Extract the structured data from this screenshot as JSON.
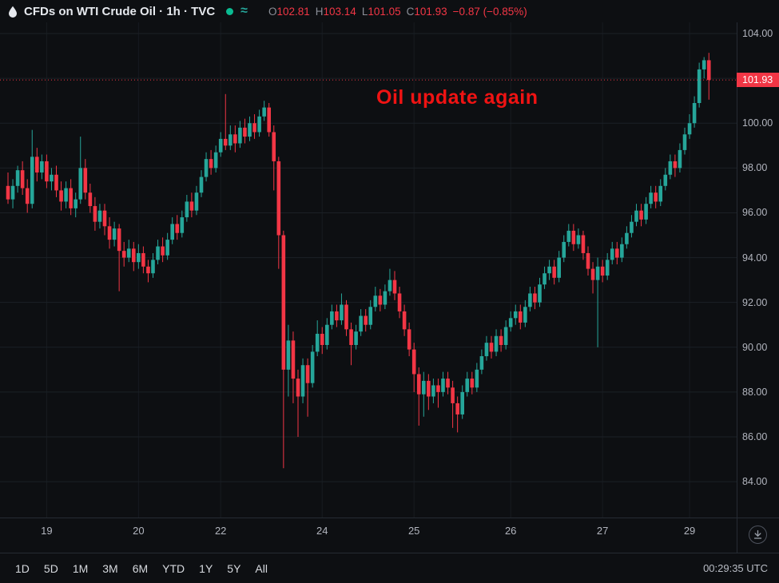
{
  "header": {
    "title": "CFDs on WTI Crude Oil · 1h · TVC",
    "wave_symbol": "≈",
    "status_dot_color": "#0abb92",
    "ohlc": {
      "o_label": "O",
      "o_value": "102.81",
      "h_label": "H",
      "h_value": "103.14",
      "l_label": "L",
      "l_value": "101.05",
      "c_label": "C",
      "c_value": "101.93",
      "change": "−0.87 (−0.85%)"
    }
  },
  "annotation": {
    "text": "Oil update again",
    "color": "#ef1313"
  },
  "price_axis": {
    "current_price_label": "101.93",
    "current_price_bg": "#f23645"
  },
  "toolbar": {
    "ranges": [
      "1D",
      "5D",
      "1M",
      "3M",
      "6M",
      "YTD",
      "1Y",
      "5Y",
      "All"
    ],
    "clock": "00:29:35 UTC"
  },
  "colors": {
    "background": "#0d0f12",
    "grid_horizontal": "#1b2026",
    "grid_vertical": "#171b20",
    "axis_text": "#b2b5be",
    "title_text": "#e6e9ee",
    "ohlc_label": "#8b8f98",
    "value_red": "#f23645",
    "up_green": "#26a69a"
  },
  "chart_data": {
    "type": "candlestick",
    "title": "CFDs on WTI Crude Oil · 1h · TVC",
    "up_color": "#26a69a",
    "down_color": "#f23645",
    "ylim": [
      82.4,
      104.5
    ],
    "last_price": 101.93,
    "price_ticks": [
      {
        "price": 104,
        "label": "104.00"
      },
      {
        "price": 102,
        "label": "102.00",
        "hidden": true
      },
      {
        "price": 100,
        "label": "100.00"
      },
      {
        "price": 98,
        "label": "98.00"
      },
      {
        "price": 96,
        "label": "96.00"
      },
      {
        "price": 94,
        "label": "94.00"
      },
      {
        "price": 92,
        "label": "92.00"
      },
      {
        "price": 90,
        "label": "90.00"
      },
      {
        "price": 88,
        "label": "88.00"
      },
      {
        "price": 86,
        "label": "86.00"
      },
      {
        "price": 84,
        "label": "84.00"
      }
    ],
    "time_labels": [
      {
        "label": "19",
        "i": 8
      },
      {
        "label": "20",
        "i": 27
      },
      {
        "label": "22",
        "i": 44
      },
      {
        "label": "24",
        "i": 65
      },
      {
        "label": "25",
        "i": 84
      },
      {
        "label": "26",
        "i": 104
      },
      {
        "label": "27",
        "i": 123
      },
      {
        "label": "29",
        "i": 141
      }
    ],
    "candles": [
      [
        97.2,
        97.8,
        96.4,
        96.6
      ],
      [
        96.6,
        97.5,
        96.2,
        97.2
      ],
      [
        97.2,
        98.1,
        96.9,
        97.9
      ],
      [
        97.9,
        98.3,
        96.8,
        97.1
      ],
      [
        97.1,
        97.5,
        96.0,
        96.4
      ],
      [
        96.4,
        99.7,
        96.2,
        98.5
      ],
      [
        98.5,
        98.9,
        97.4,
        97.8
      ],
      [
        97.8,
        98.6,
        97.5,
        98.3
      ],
      [
        98.3,
        98.6,
        97.1,
        97.4
      ],
      [
        97.4,
        98.0,
        97.0,
        97.7
      ],
      [
        97.7,
        98.1,
        96.7,
        97.0
      ],
      [
        97.0,
        97.4,
        96.1,
        96.5
      ],
      [
        96.5,
        97.4,
        96.2,
        97.1
      ],
      [
        97.1,
        97.5,
        95.9,
        96.2
      ],
      [
        96.2,
        96.9,
        95.8,
        96.6
      ],
      [
        96.6,
        99.4,
        96.4,
        98.0
      ],
      [
        98.0,
        98.4,
        96.6,
        96.9
      ],
      [
        96.9,
        97.3,
        96.0,
        96.3
      ],
      [
        96.3,
        96.7,
        95.2,
        95.6
      ],
      [
        95.6,
        96.4,
        95.3,
        96.1
      ],
      [
        96.1,
        96.4,
        95.0,
        95.4
      ],
      [
        95.4,
        95.8,
        94.4,
        94.8
      ],
      [
        94.8,
        95.6,
        94.5,
        95.3
      ],
      [
        95.3,
        95.5,
        92.5,
        94.3
      ],
      [
        94.3,
        94.7,
        93.6,
        94.0
      ],
      [
        94.0,
        94.8,
        93.8,
        94.4
      ],
      [
        94.4,
        94.7,
        93.4,
        93.8
      ],
      [
        93.8,
        94.6,
        93.5,
        94.2
      ],
      [
        94.2,
        94.5,
        93.3,
        93.6
      ],
      [
        93.6,
        93.9,
        92.9,
        93.3
      ],
      [
        93.3,
        94.2,
        93.1,
        93.9
      ],
      [
        93.9,
        94.8,
        93.7,
        94.5
      ],
      [
        94.5,
        94.9,
        93.8,
        94.1
      ],
      [
        94.1,
        95.1,
        93.9,
        94.8
      ],
      [
        94.8,
        95.8,
        94.6,
        95.5
      ],
      [
        95.5,
        95.9,
        94.8,
        95.1
      ],
      [
        95.1,
        96.1,
        94.9,
        95.8
      ],
      [
        95.8,
        96.8,
        95.6,
        96.5
      ],
      [
        96.5,
        96.9,
        95.8,
        96.1
      ],
      [
        96.1,
        97.2,
        95.9,
        96.9
      ],
      [
        96.9,
        97.9,
        96.7,
        97.6
      ],
      [
        97.6,
        98.7,
        97.4,
        98.4
      ],
      [
        98.4,
        98.8,
        97.7,
        98.0
      ],
      [
        98.0,
        99.0,
        97.8,
        98.7
      ],
      [
        98.7,
        99.6,
        98.5,
        99.3
      ],
      [
        99.3,
        101.3,
        98.8,
        99.0
      ],
      [
        99.0,
        99.9,
        98.8,
        99.5
      ],
      [
        99.5,
        99.9,
        98.7,
        99.1
      ],
      [
        99.1,
        100.1,
        98.9,
        99.8
      ],
      [
        99.8,
        100.2,
        99.1,
        99.4
      ],
      [
        99.4,
        100.3,
        99.2,
        100.0
      ],
      [
        100.0,
        100.4,
        99.3,
        99.6
      ],
      [
        99.6,
        100.6,
        99.4,
        100.3
      ],
      [
        100.3,
        101.0,
        100.1,
        100.7
      ],
      [
        100.7,
        100.9,
        99.4,
        99.6
      ],
      [
        99.6,
        99.9,
        97.0,
        98.3
      ],
      [
        98.3,
        98.5,
        93.5,
        95.0
      ],
      [
        95.0,
        95.2,
        84.6,
        89.0
      ],
      [
        89.0,
        91.0,
        87.8,
        90.3
      ],
      [
        90.3,
        90.7,
        87.5,
        88.6
      ],
      [
        88.6,
        89.0,
        86.0,
        87.8
      ],
      [
        87.8,
        89.5,
        87.5,
        89.2
      ],
      [
        89.2,
        89.5,
        86.9,
        88.4
      ],
      [
        88.4,
        90.1,
        88.2,
        89.8
      ],
      [
        89.8,
        91.2,
        89.6,
        90.6
      ],
      [
        90.6,
        90.9,
        89.7,
        90.1
      ],
      [
        90.1,
        91.3,
        89.9,
        91.0
      ],
      [
        91.0,
        91.9,
        90.8,
        91.6
      ],
      [
        91.6,
        91.9,
        90.9,
        91.2
      ],
      [
        91.2,
        92.4,
        91.0,
        91.9
      ],
      [
        91.9,
        92.1,
        90.5,
        90.8
      ],
      [
        90.8,
        91.1,
        89.2,
        90.1
      ],
      [
        90.1,
        91.0,
        89.9,
        90.7
      ],
      [
        90.7,
        91.7,
        90.5,
        91.4
      ],
      [
        91.4,
        91.7,
        90.7,
        91.0
      ],
      [
        91.0,
        92.1,
        90.8,
        91.8
      ],
      [
        91.8,
        92.7,
        91.6,
        92.3
      ],
      [
        92.3,
        92.6,
        91.6,
        91.9
      ],
      [
        91.9,
        92.8,
        91.7,
        92.5
      ],
      [
        92.5,
        93.5,
        92.3,
        93.0
      ],
      [
        93.0,
        93.4,
        92.1,
        92.4
      ],
      [
        92.4,
        92.7,
        91.3,
        91.6
      ],
      [
        91.6,
        91.9,
        90.5,
        90.8
      ],
      [
        90.8,
        91.1,
        89.6,
        89.9
      ],
      [
        89.9,
        90.2,
        88.0,
        88.8
      ],
      [
        88.8,
        89.1,
        86.5,
        87.9
      ],
      [
        87.9,
        88.9,
        86.9,
        88.5
      ],
      [
        88.5,
        88.8,
        87.2,
        87.8
      ],
      [
        87.8,
        88.6,
        87.5,
        88.3
      ],
      [
        88.3,
        88.6,
        87.3,
        88.0
      ],
      [
        88.0,
        88.9,
        87.8,
        88.6
      ],
      [
        88.6,
        88.9,
        87.9,
        88.2
      ],
      [
        88.2,
        88.5,
        86.4,
        87.5
      ],
      [
        87.5,
        87.8,
        86.2,
        87.0
      ],
      [
        87.0,
        88.3,
        86.8,
        88.0
      ],
      [
        88.0,
        88.9,
        87.8,
        88.6
      ],
      [
        88.6,
        88.9,
        87.9,
        88.2
      ],
      [
        88.2,
        89.3,
        88.0,
        89.0
      ],
      [
        89.0,
        89.9,
        88.8,
        89.6
      ],
      [
        89.6,
        90.5,
        89.4,
        90.2
      ],
      [
        90.2,
        90.5,
        89.5,
        89.8
      ],
      [
        89.8,
        90.8,
        89.6,
        90.5
      ],
      [
        90.5,
        90.8,
        89.8,
        90.1
      ],
      [
        90.1,
        91.2,
        89.9,
        90.9
      ],
      [
        90.9,
        91.6,
        90.7,
        91.3
      ],
      [
        91.3,
        91.9,
        91.0,
        91.6
      ],
      [
        91.6,
        91.9,
        90.8,
        91.1
      ],
      [
        91.1,
        92.1,
        90.9,
        91.8
      ],
      [
        91.8,
        92.7,
        91.6,
        92.4
      ],
      [
        92.4,
        92.7,
        91.7,
        92.0
      ],
      [
        92.0,
        93.1,
        91.8,
        92.8
      ],
      [
        92.8,
        93.6,
        92.6,
        93.3
      ],
      [
        93.3,
        93.9,
        93.0,
        93.6
      ],
      [
        93.6,
        93.9,
        92.8,
        93.1
      ],
      [
        93.1,
        94.3,
        92.9,
        94.0
      ],
      [
        94.0,
        95.0,
        93.8,
        94.7
      ],
      [
        94.7,
        95.5,
        94.5,
        95.2
      ],
      [
        95.2,
        95.5,
        94.3,
        94.6
      ],
      [
        94.6,
        95.3,
        94.4,
        95.0
      ],
      [
        95.0,
        95.2,
        93.9,
        94.2
      ],
      [
        94.2,
        94.5,
        93.2,
        93.5
      ],
      [
        93.5,
        93.8,
        92.4,
        93.0
      ],
      [
        93.0,
        94.0,
        90.0,
        93.6
      ],
      [
        93.6,
        93.9,
        92.9,
        93.2
      ],
      [
        93.2,
        94.2,
        93.0,
        93.9
      ],
      [
        93.9,
        94.7,
        93.7,
        94.4
      ],
      [
        94.4,
        94.7,
        93.7,
        94.0
      ],
      [
        94.0,
        94.9,
        93.8,
        94.6
      ],
      [
        94.6,
        95.4,
        94.4,
        95.1
      ],
      [
        95.1,
        95.9,
        94.9,
        95.6
      ],
      [
        95.6,
        96.4,
        95.4,
        96.1
      ],
      [
        96.1,
        96.4,
        95.4,
        95.7
      ],
      [
        95.7,
        96.7,
        95.5,
        96.4
      ],
      [
        96.4,
        97.2,
        96.2,
        96.9
      ],
      [
        96.9,
        97.2,
        96.2,
        96.5
      ],
      [
        96.5,
        97.5,
        96.3,
        97.2
      ],
      [
        97.2,
        98.0,
        97.0,
        97.7
      ],
      [
        97.7,
        98.6,
        97.5,
        98.3
      ],
      [
        98.3,
        98.6,
        97.6,
        98.0
      ],
      [
        98.0,
        99.1,
        97.8,
        98.8
      ],
      [
        98.8,
        99.8,
        98.6,
        99.5
      ],
      [
        99.5,
        100.4,
        99.3,
        100.0
      ],
      [
        100.0,
        101.2,
        99.8,
        100.9
      ],
      [
        100.9,
        102.7,
        100.7,
        102.4
      ],
      [
        102.4,
        102.95,
        102.0,
        102.81
      ],
      [
        102.81,
        103.14,
        101.05,
        101.93
      ]
    ]
  }
}
